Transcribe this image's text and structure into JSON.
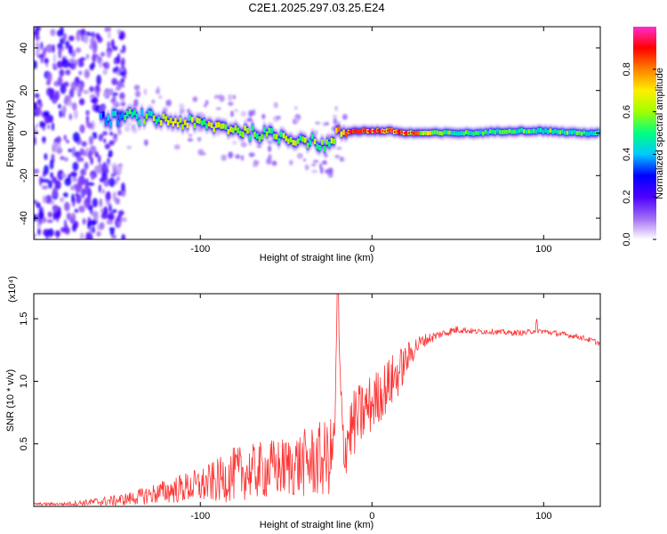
{
  "chart_data": [
    {
      "type": "heatmap",
      "title": "C2E1.2025.297.03.25.E24",
      "xlabel": "Height of straight line (km)",
      "ylabel": "Frequency (Hz)",
      "xlim": [
        -197,
        133
      ],
      "ylim": [
        -50,
        50
      ],
      "xticks": [
        -100,
        0,
        100
      ],
      "yticks": [
        -40,
        -20,
        0,
        20,
        40
      ],
      "colorbar": {
        "label": "Normalized spectral amplitude",
        "range": [
          0,
          1
        ],
        "ticks": [
          "0.0",
          "0.2",
          "0.4",
          "0.6",
          "0.8"
        ],
        "tick_values": [
          0.0,
          0.2,
          0.4,
          0.6,
          0.8
        ],
        "colors": [
          "#ffffff",
          "#9f6cf5",
          "#4d00ff",
          "#0000ff",
          "#00c8ff",
          "#00ff80",
          "#a0ff00",
          "#ffee00",
          "#ff8000",
          "#ff0000",
          "#ff2bd0"
        ]
      },
      "ridge": {
        "x": [
          -160,
          -150,
          -140,
          -130,
          -120,
          -110,
          -100,
          -90,
          -80,
          -70,
          -60,
          -50,
          -40,
          -30,
          -25,
          -20,
          -10,
          0,
          10,
          20,
          40,
          60,
          80,
          100,
          120,
          133
        ],
        "y": [
          6,
          7,
          8,
          7,
          6,
          5,
          4,
          3,
          2,
          0,
          -1,
          -2,
          -3,
          -5,
          -6,
          0,
          1,
          1,
          1,
          0,
          0,
          0,
          1,
          1,
          0,
          0
        ]
      },
      "noise_region_x": [
        -197,
        -150
      ],
      "series": [
        {
          "name": "Normalized spectral amplitude",
          "values": [
            0.35,
            0.45,
            0.55,
            0.6,
            0.65,
            0.7,
            0.7,
            0.7,
            0.65,
            0.65,
            0.7,
            0.7,
            0.65,
            0.6,
            0.55,
            0.8,
            0.9,
            0.95,
            0.95,
            0.9,
            0.6,
            0.55,
            0.55,
            0.6,
            0.55,
            0.55
          ]
        }
      ]
    },
    {
      "type": "line",
      "xlabel": "Height of straight line (km)",
      "ylabel": "SNR (10 * v/v)",
      "scale_label": "(x10⁴)",
      "xlim": [
        -197,
        133
      ],
      "ylim": [
        0,
        1.7
      ],
      "xticks": [
        -100,
        0,
        100
      ],
      "yticks": [
        0.5,
        1.0,
        1.5
      ],
      "ytick_labels": [
        "0.5",
        "1.0",
        "1.5"
      ],
      "color": "#ff3333",
      "series": [
        {
          "name": "SNR",
          "x": [
            -197,
            -180,
            -170,
            -160,
            -150,
            -140,
            -130,
            -120,
            -110,
            -100,
            -90,
            -80,
            -70,
            -60,
            -50,
            -40,
            -30,
            -25,
            -22,
            -20,
            -18,
            -16,
            -14,
            -10,
            -5,
            0,
            5,
            10,
            15,
            20,
            25,
            30,
            40,
            50,
            60,
            70,
            80,
            90,
            95,
            100,
            110,
            120,
            130,
            133
          ],
          "values": [
            0.02,
            0.02,
            0.03,
            0.04,
            0.05,
            0.07,
            0.1,
            0.13,
            0.16,
            0.18,
            0.22,
            0.28,
            0.3,
            0.32,
            0.34,
            0.37,
            0.4,
            0.42,
            0.5,
            1.7,
            0.8,
            0.45,
            0.6,
            0.7,
            0.78,
            0.85,
            0.92,
            1.0,
            1.08,
            1.18,
            1.28,
            1.33,
            1.38,
            1.42,
            1.4,
            1.4,
            1.39,
            1.39,
            1.41,
            1.4,
            1.38,
            1.36,
            1.32,
            1.3
          ],
          "noise": [
            0.01,
            0.01,
            0.02,
            0.03,
            0.04,
            0.05,
            0.07,
            0.09,
            0.11,
            0.13,
            0.16,
            0.2,
            0.2,
            0.22,
            0.22,
            0.25,
            0.28,
            0.28,
            0.25,
            0.0,
            0.2,
            0.2,
            0.25,
            0.25,
            0.24,
            0.22,
            0.2,
            0.2,
            0.18,
            0.12,
            0.08,
            0.05,
            0.03,
            0.03,
            0.02,
            0.02,
            0.02,
            0.02,
            0.02,
            0.02,
            0.02,
            0.02,
            0.02,
            0.02
          ]
        }
      ]
    }
  ]
}
